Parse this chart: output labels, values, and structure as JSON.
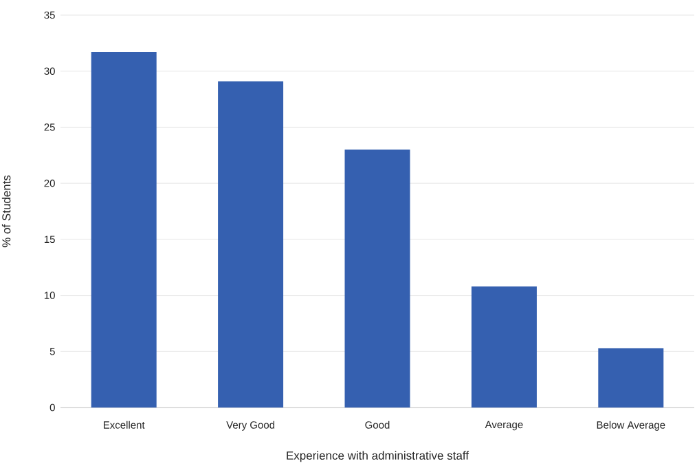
{
  "chart_data": {
    "type": "bar",
    "xlabel": "Experience with administrative staff",
    "ylabel": "% of Students",
    "categories": [
      "Excellent",
      "Very Good",
      "Good",
      "Average",
      "Below Average"
    ],
    "values": [
      31.7,
      29.1,
      23.0,
      10.8,
      5.3
    ],
    "color": "#3560b0",
    "ylim": [
      0,
      35
    ],
    "yticks": [
      0,
      5,
      10,
      15,
      20,
      25,
      30,
      35
    ],
    "grid": "y"
  }
}
